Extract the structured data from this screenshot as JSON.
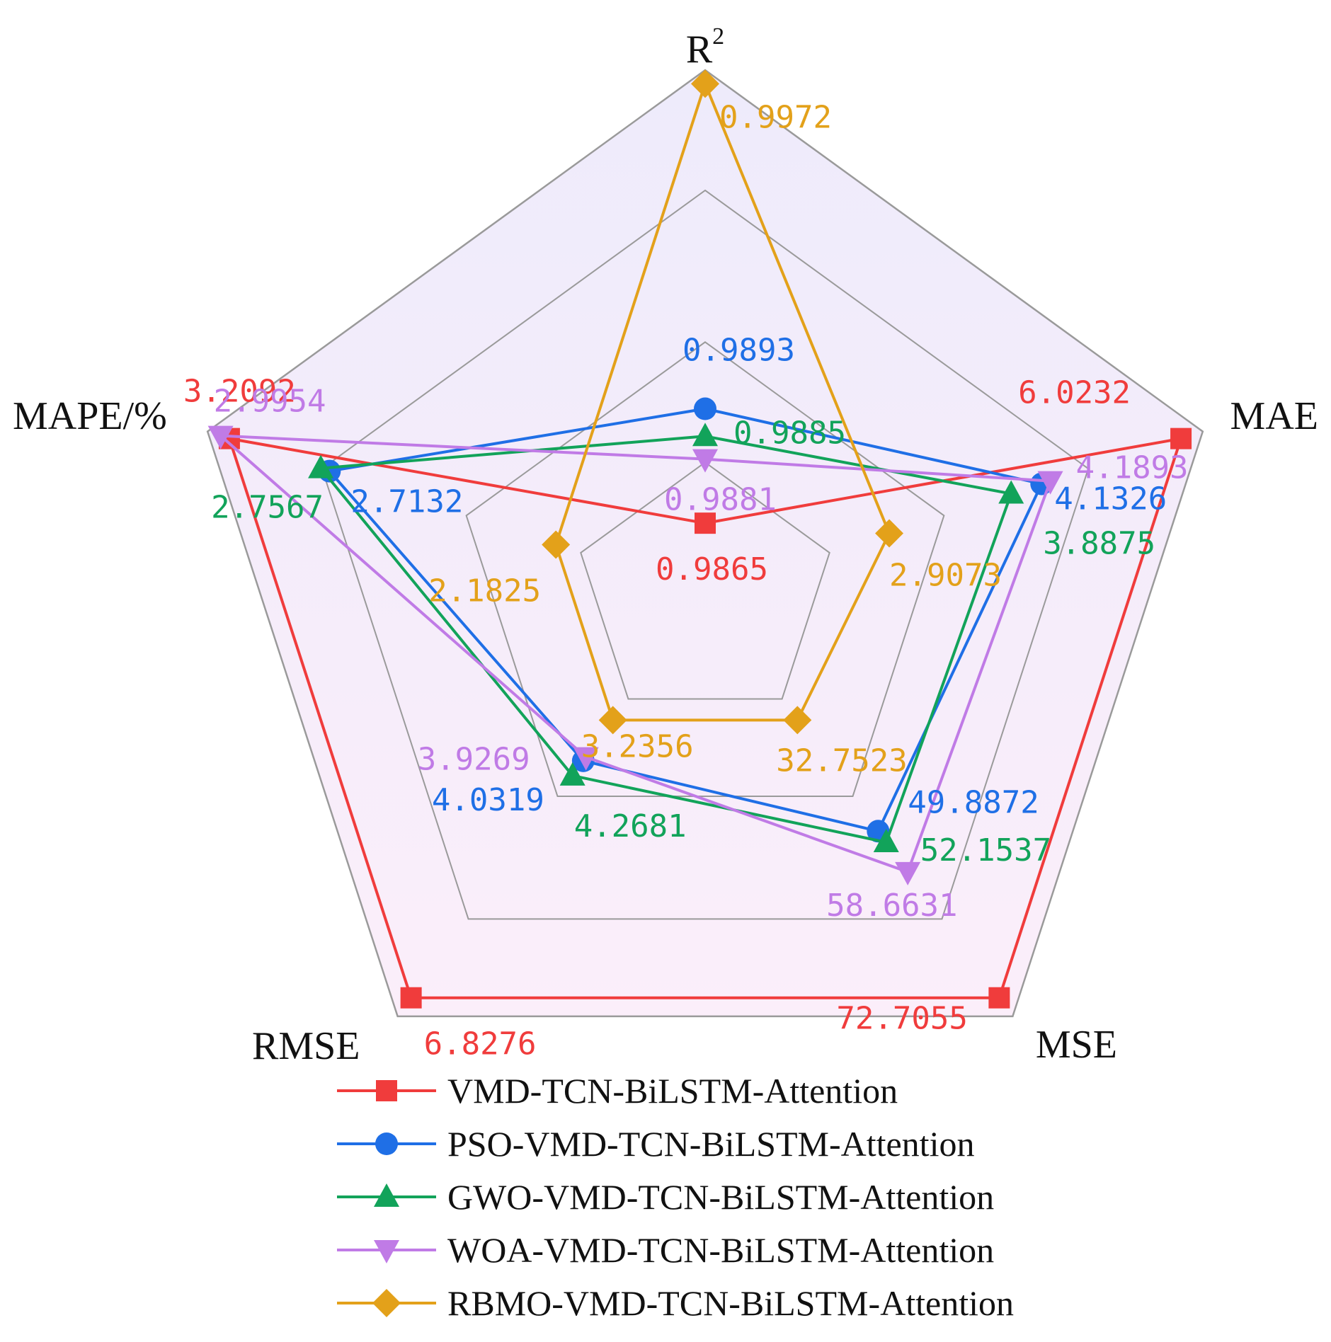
{
  "chart_data": {
    "type": "radar",
    "axes": [
      {
        "id": "r2",
        "label": "R",
        "superscript": "2"
      },
      {
        "id": "mae",
        "label": "MAE"
      },
      {
        "id": "mse",
        "label": "MSE"
      },
      {
        "id": "rmse",
        "label": "RMSE"
      },
      {
        "id": "mape",
        "label": "MAPE/%"
      }
    ],
    "series": [
      {
        "name": "VMD-TCN-BiLSTM-Attention",
        "color": "#f03c3c",
        "marker": "square",
        "values": [
          0.9865,
          6.0232,
          72.7055,
          6.8276,
          3.2092
        ],
        "labels": [
          "0.9865",
          "6.0232",
          "72.7055",
          "6.8276",
          "3.2092"
        ],
        "levels": [
          0.01,
          0.95,
          0.95,
          0.95,
          0.95
        ]
      },
      {
        "name": "PSO-VMD-TCN-BiLSTM-Attention",
        "color": "#1f6fe6",
        "marker": "circle",
        "values": [
          0.9893,
          4.1326,
          49.8872,
          4.0319,
          2.7132
        ],
        "labels": [
          "0.9893",
          "4.1326",
          "49.8872",
          "4.0319",
          "2.7132"
        ],
        "levels": [
          0.26,
          0.63,
          0.5,
          0.31,
          0.72
        ]
      },
      {
        "name": "GWO-VMD-TCN-BiLSTM-Attention",
        "color": "#12a35a",
        "marker": "triangle-up",
        "values": [
          0.9885,
          3.8875,
          52.1537,
          4.2681,
          2.7567
        ],
        "labels": [
          "0.9885",
          "3.8875",
          "52.1537",
          "4.2681",
          "2.7567"
        ],
        "levels": [
          0.2,
          0.56,
          0.53,
          0.35,
          0.74
        ]
      },
      {
        "name": "WOA-VMD-TCN-BiLSTM-Attention",
        "color": "#c07be6",
        "marker": "triangle-down",
        "values": [
          0.9881,
          4.1893,
          58.6631,
          3.9269,
          2.9954
        ],
        "labels": [
          "0.9881",
          "4.1893",
          "58.6631",
          "3.9269",
          "2.9954"
        ],
        "levels": [
          0.15,
          0.65,
          0.61,
          0.3,
          0.97
        ]
      },
      {
        "name": "RBMO-VMD-TCN-BiLSTM-Attention",
        "color": "#e3a11a",
        "marker": "diamond",
        "values": [
          0.9972,
          2.9073,
          32.7523,
          3.2356,
          2.1825
        ],
        "labels": [
          "0.9972",
          "2.9073",
          "32.7523",
          "3.2356",
          "2.1825"
        ],
        "levels": [
          0.97,
          0.28,
          0.2,
          0.2,
          0.2
        ]
      }
    ],
    "grid_rings": 4,
    "legend_position": "bottom"
  }
}
